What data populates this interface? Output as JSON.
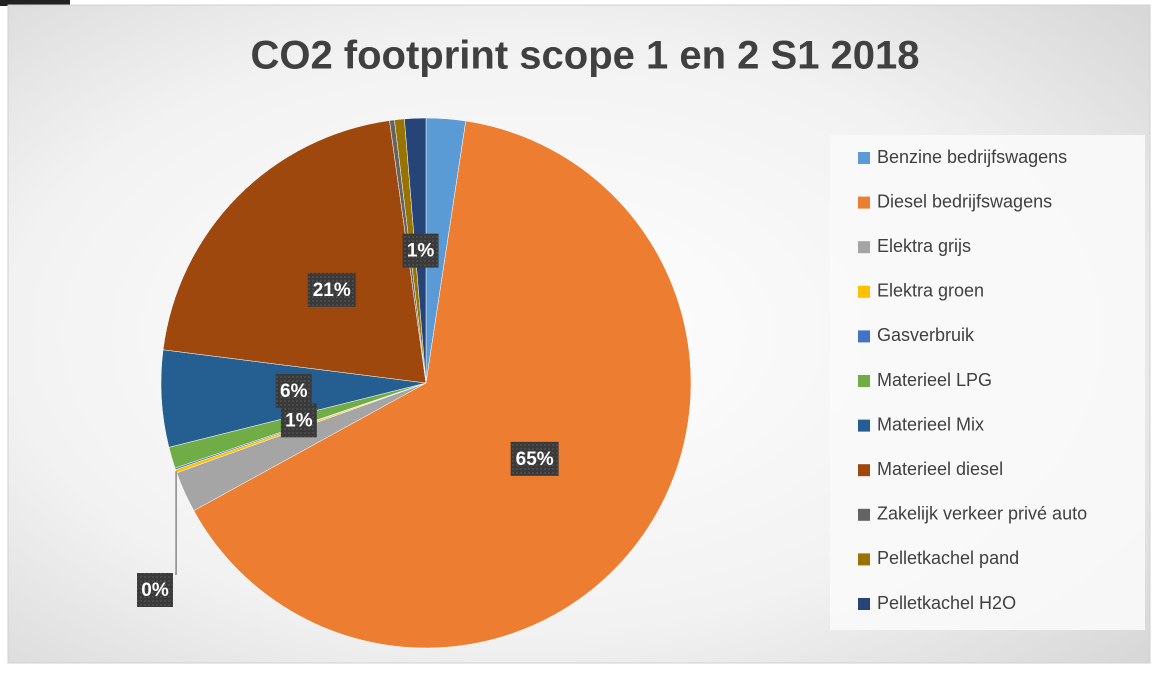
{
  "chart_data": {
    "type": "pie",
    "title": "CO2 footprint scope 1 en 2 S1 2018",
    "categories": [
      "Benzine bedrijfswagens",
      "Diesel bedrijfswagens",
      "Elektra grijs",
      "Elektra groen",
      "Gasverbruik",
      "Materieel LPG",
      "Materieel Mix",
      "Materieel diesel",
      "Zakelijk verkeer privé auto",
      "Pelletkachel pand",
      "Pelletkachel H2O"
    ],
    "values": [
      2.4,
      64.6,
      2.5,
      0.2,
      0.1,
      1.3,
      5.9,
      20.8,
      0.3,
      0.6,
      1.3
    ],
    "value_labels": [
      null,
      "65%",
      null,
      "0%",
      null,
      "1%",
      "6%",
      "21%",
      null,
      null,
      "1%"
    ],
    "colors": [
      "#5b9bd5",
      "#ed7d31",
      "#a5a5a5",
      "#ffc000",
      "#4472c4",
      "#70ad47",
      "#255e91",
      "#9e480e",
      "#636363",
      "#997300",
      "#264478"
    ],
    "legend": "right"
  }
}
